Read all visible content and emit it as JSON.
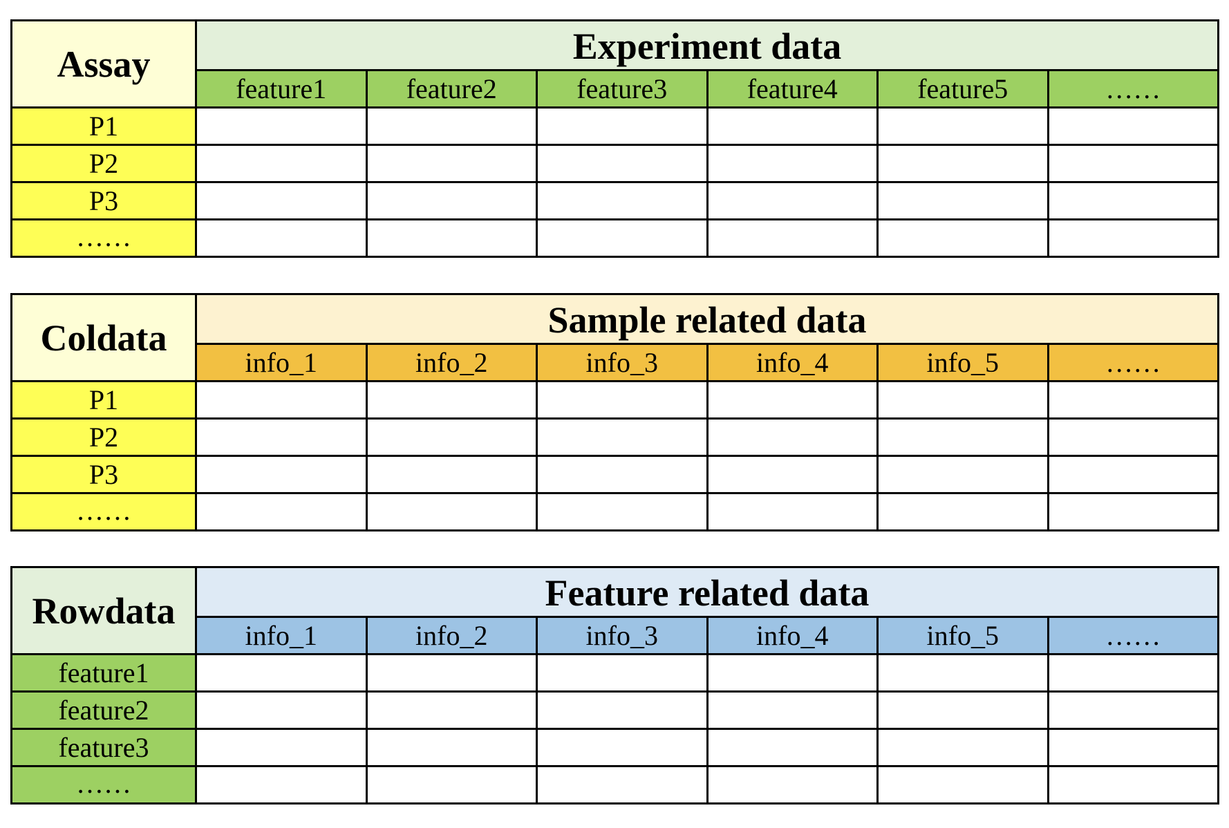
{
  "blocks": [
    {
      "corner": "Assay",
      "title": "Experiment data",
      "columns": [
        "feature1",
        "feature2",
        "feature3",
        "feature4",
        "feature5",
        "……"
      ],
      "rows": [
        "P1",
        "P2",
        "P3",
        "……"
      ],
      "colors": {
        "corner": "#fefed6",
        "title": "#e3f0da",
        "columns": "#9dd062",
        "rows": "#fefe56"
      }
    },
    {
      "corner": "Coldata",
      "title": "Sample related data",
      "columns": [
        "info_1",
        "info_2",
        "info_3",
        "info_4",
        "info_5",
        "……"
      ],
      "rows": [
        "P1",
        "P2",
        "P3",
        "……"
      ],
      "colors": {
        "corner": "#fefed6",
        "title": "#fdf2d0",
        "columns": "#f2c042",
        "rows": "#fefe56"
      }
    },
    {
      "corner": "Rowdata",
      "title": "Feature related data",
      "columns": [
        "info_1",
        "info_2",
        "info_3",
        "info_4",
        "info_5",
        "……"
      ],
      "rows": [
        "feature1",
        "feature2",
        "feature3",
        "……"
      ],
      "colors": {
        "corner": "#e3f0da",
        "title": "#deeaf5",
        "columns": "#9dc3e4",
        "rows": "#9dd062"
      }
    }
  ]
}
